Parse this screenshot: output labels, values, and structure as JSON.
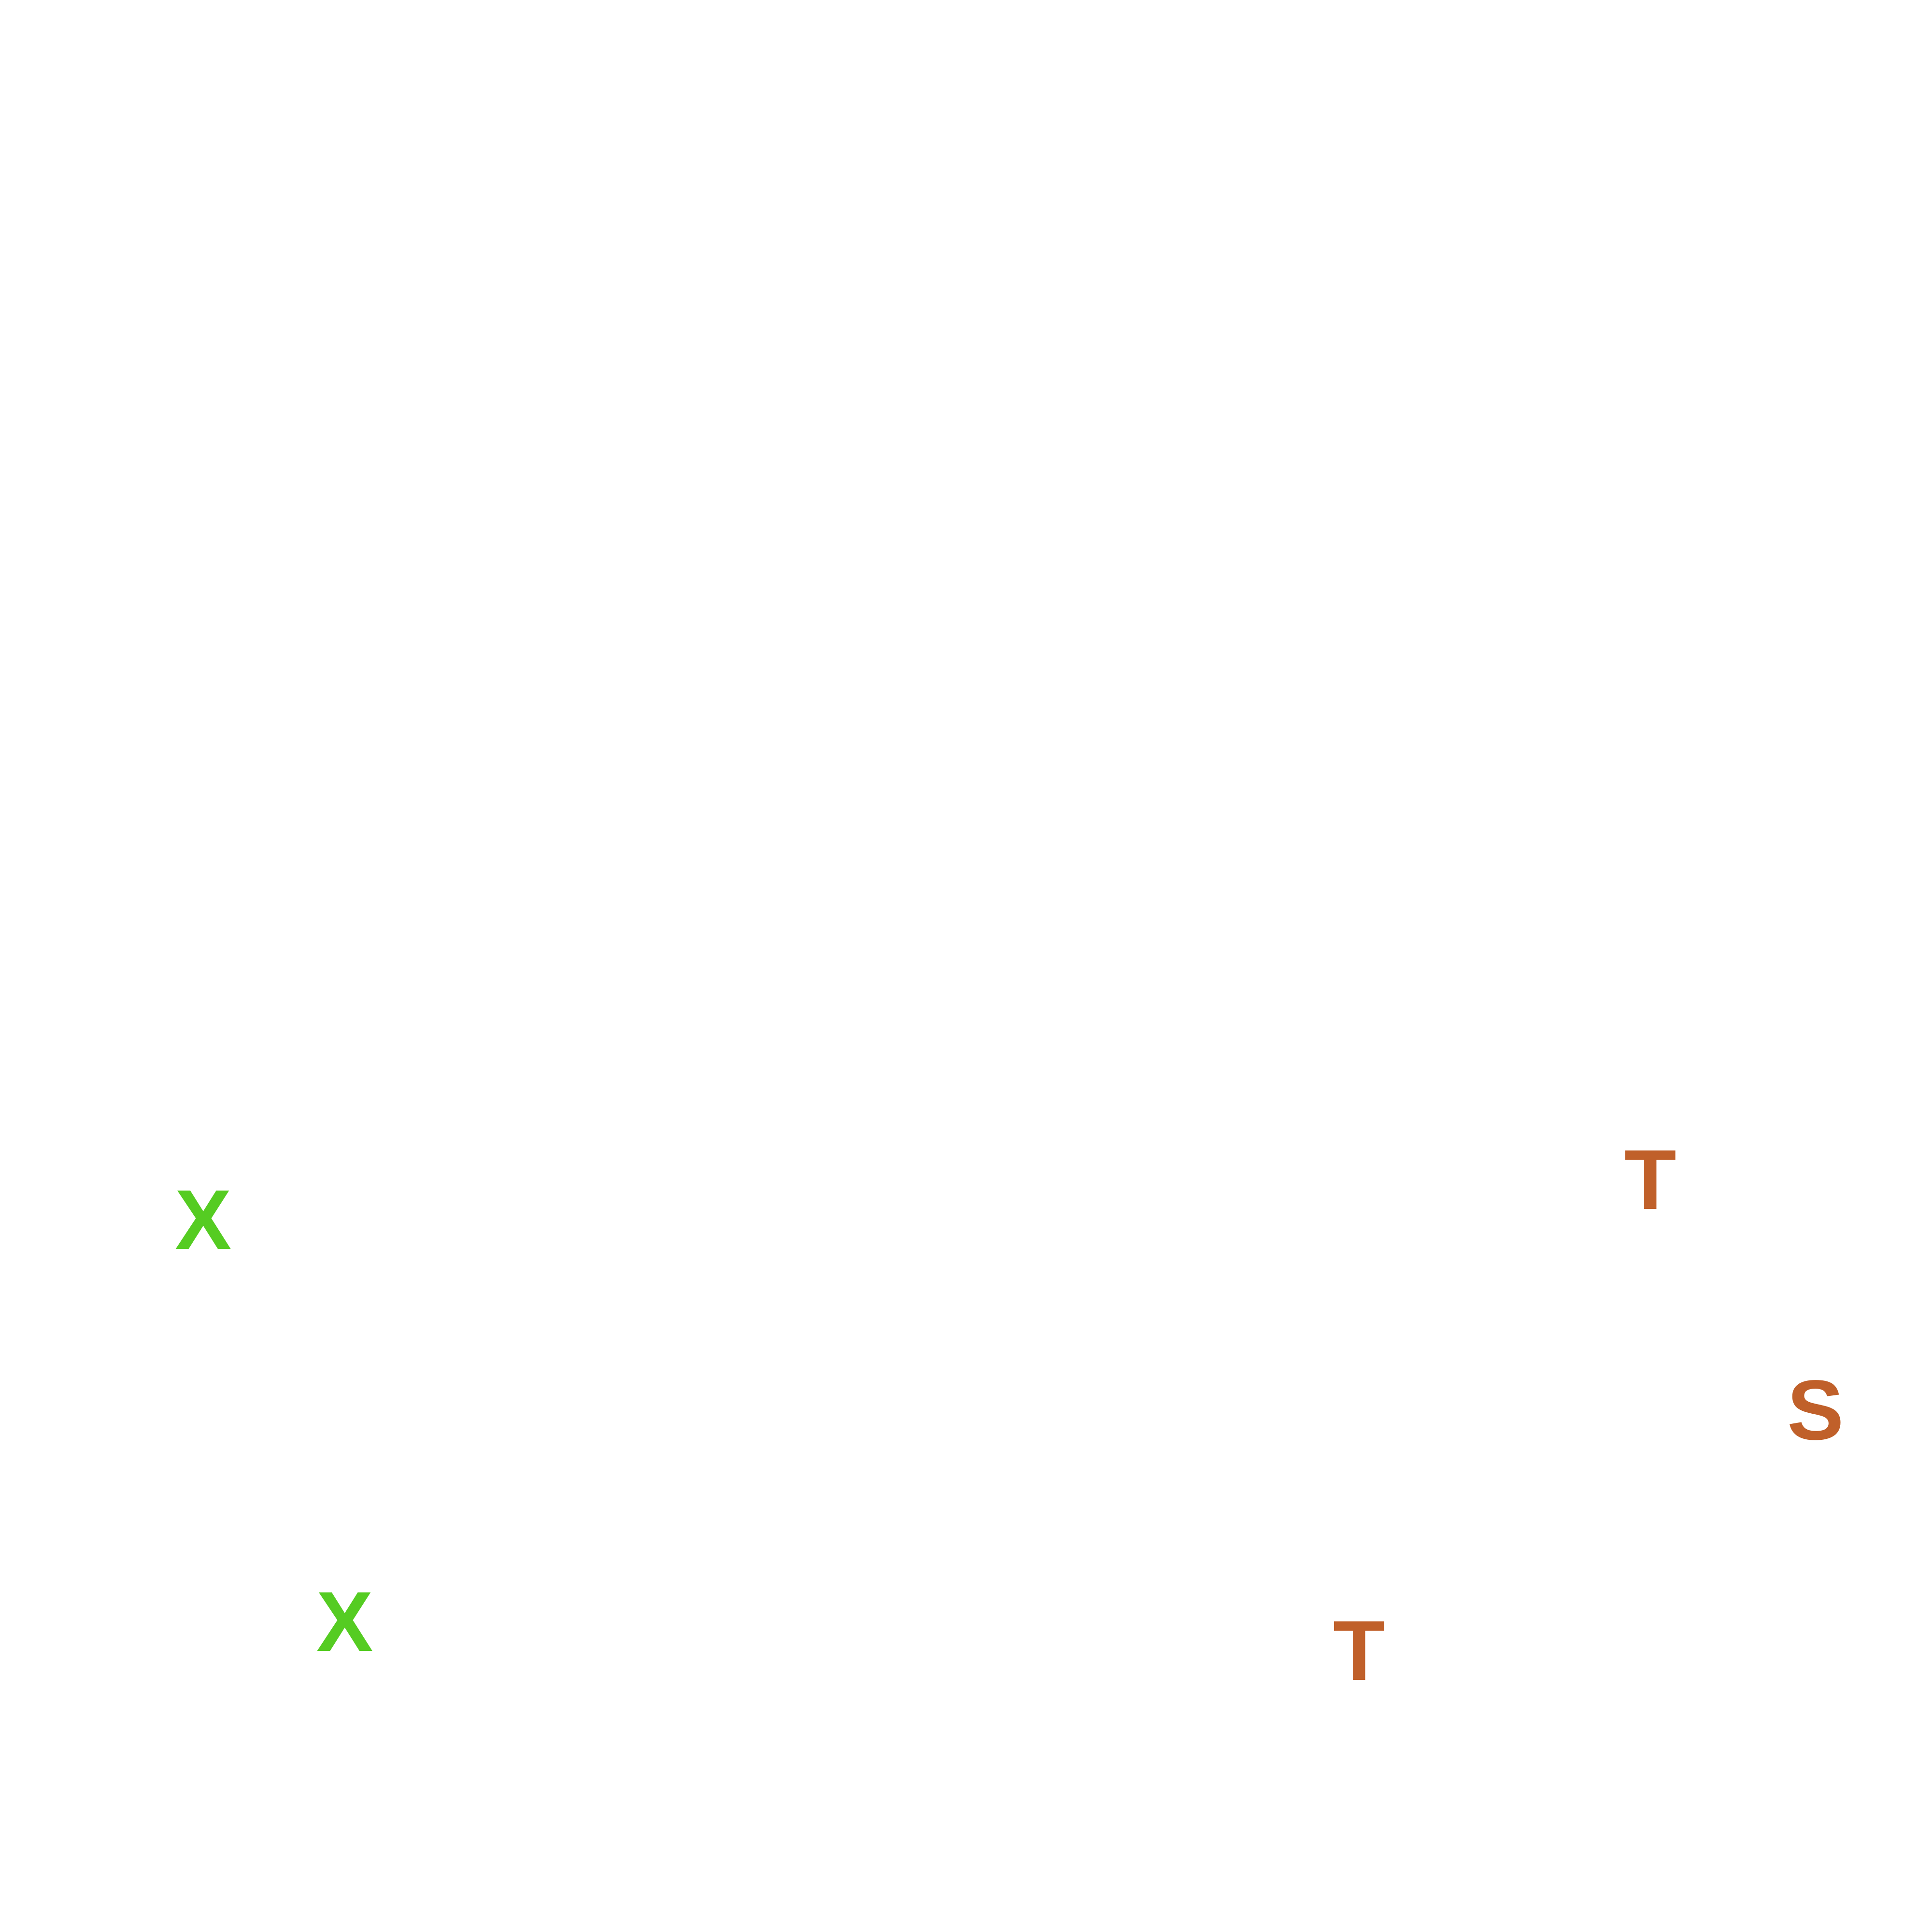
{
  "letters": [
    {
      "text": "X",
      "color": "#55cc22"
    },
    {
      "text": "X",
      "color": "#55cc22"
    },
    {
      "text": "T",
      "color": "#c0602a"
    },
    {
      "text": "S",
      "color": "#c0602a"
    },
    {
      "text": "T",
      "color": "#c0602a"
    }
  ]
}
